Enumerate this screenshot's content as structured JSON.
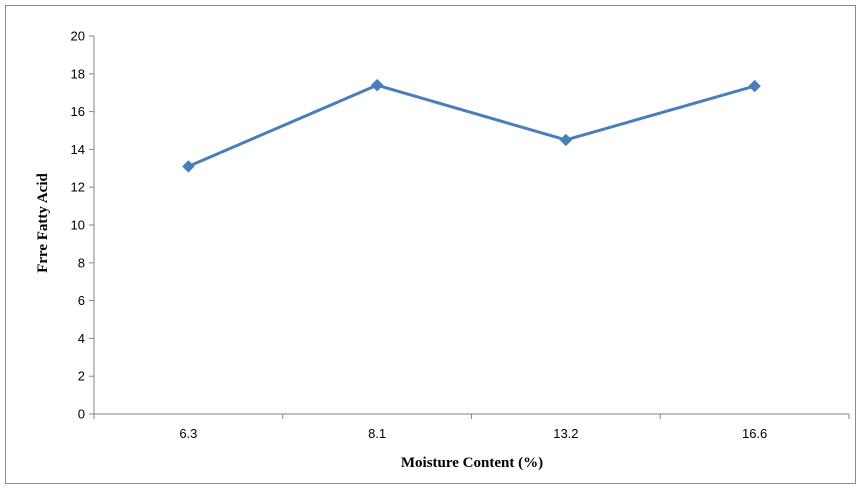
{
  "chart_data": {
    "type": "line",
    "categories": [
      "6.3",
      "8.1",
      "13.2",
      "16.6"
    ],
    "series": [
      {
        "values": [
          13.1,
          17.4,
          14.5,
          17.35
        ]
      }
    ],
    "xlabel": "Moisture Content (%)",
    "ylabel": "Frre Fatty Acid",
    "ylim": [
      0,
      20
    ],
    "yticks": [
      0,
      2,
      4,
      6,
      8,
      10,
      12,
      14,
      16,
      18,
      20
    ],
    "grid": false,
    "legend": "none",
    "colors": {
      "series": "#4a7ebb",
      "axis": "#868686"
    },
    "marker": "diamond"
  }
}
